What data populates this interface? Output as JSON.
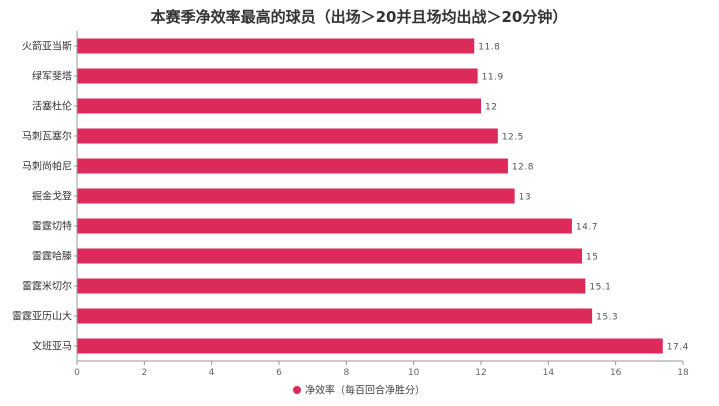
{
  "chart_data": {
    "type": "bar",
    "orientation": "horizontal",
    "title": "本赛季净效率最高的球员（出场＞20并且场均出战＞20分钟）",
    "categories": [
      "火箭亚当斯",
      "绿军斐塔",
      "活塞杜伦",
      "马刺瓦塞尔",
      "马刺尚帕尼",
      "掘金戈登",
      "雷霆切特",
      "雷霆哈滕",
      "雷霆米切尔",
      "雷霆亚历山大",
      "文班亚马"
    ],
    "series": [
      {
        "name": "净效率（每百回合净胜分）",
        "values": [
          11.8,
          11.9,
          12,
          12.5,
          12.8,
          13,
          14.7,
          15,
          15.1,
          15.3,
          17.4
        ],
        "labels": [
          "11.8",
          "11.9",
          "12",
          "12.5",
          "12.8",
          "13",
          "14.7",
          "15",
          "15.1",
          "15.3",
          "17.4"
        ],
        "color": "#dc2a5b"
      }
    ],
    "xlim": [
      0,
      18
    ],
    "xticks": [
      "0",
      "2",
      "4",
      "6",
      "8",
      "10",
      "12",
      "14",
      "16",
      "18"
    ],
    "grid": false,
    "legend_position": "bottom-center"
  }
}
